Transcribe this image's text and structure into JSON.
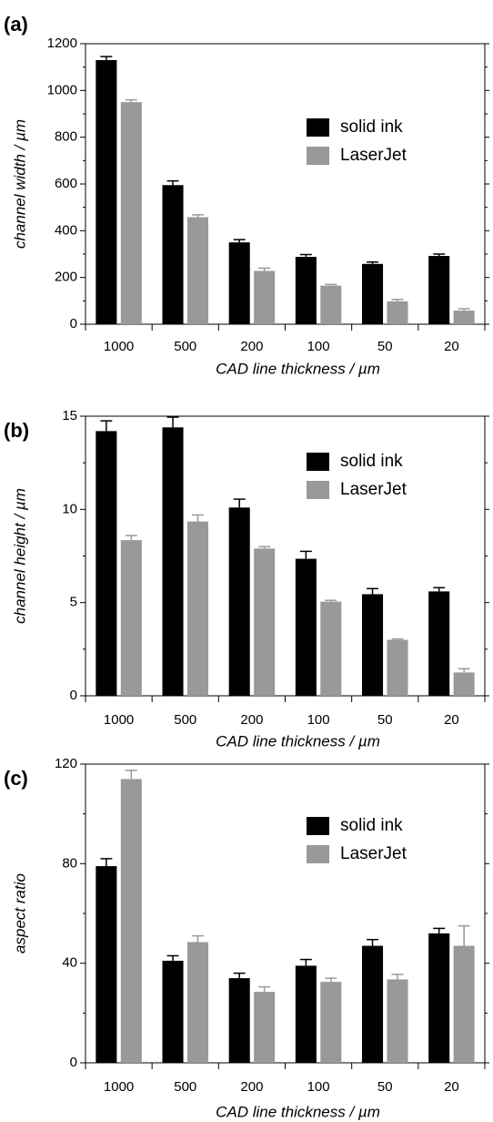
{
  "figure": {
    "categories": [
      "1000",
      "500",
      "200",
      "100",
      "50",
      "20"
    ],
    "series_colors": {
      "solid ink": "#000000",
      "LaserJet": "#999999"
    }
  },
  "chart_data": [
    {
      "type": "bar",
      "panel_label": "(a)",
      "xlabel": "CAD line thickness  /  µm",
      "ylabel": "channel  width  /  µm",
      "categories": [
        "1000",
        "500",
        "200",
        "100",
        "50",
        "20"
      ],
      "ylim": [
        0,
        1200
      ],
      "yticks": [
        0,
        200,
        400,
        600,
        800,
        1000,
        1200
      ],
      "legend_position": "upper-right",
      "series": [
        {
          "name": "solid ink",
          "color": "#000000",
          "values": [
            1130,
            595,
            350,
            288,
            258,
            292
          ],
          "errors": [
            15,
            18,
            12,
            10,
            8,
            8
          ]
        },
        {
          "name": "LaserJet",
          "color": "#999999",
          "values": [
            950,
            458,
            228,
            165,
            98,
            58
          ],
          "errors": [
            10,
            10,
            12,
            5,
            8,
            8
          ]
        }
      ]
    },
    {
      "type": "bar",
      "panel_label": "(b)",
      "xlabel": "CAD line thickness  /  µm",
      "ylabel": "channel  height  /  µm",
      "categories": [
        "1000",
        "500",
        "200",
        "100",
        "50",
        "20"
      ],
      "ylim": [
        0,
        15
      ],
      "yticks": [
        0,
        5,
        10,
        15
      ],
      "legend_position": "upper-right",
      "series": [
        {
          "name": "solid ink",
          "color": "#000000",
          "values": [
            14.2,
            14.4,
            10.1,
            7.35,
            5.45,
            5.6
          ],
          "errors": [
            0.55,
            0.55,
            0.45,
            0.4,
            0.3,
            0.2
          ]
        },
        {
          "name": "LaserJet",
          "color": "#999999",
          "values": [
            8.35,
            9.35,
            7.9,
            5.05,
            3.0,
            1.25
          ],
          "errors": [
            0.25,
            0.35,
            0.1,
            0.07,
            0.05,
            0.2
          ]
        }
      ]
    },
    {
      "type": "bar",
      "panel_label": "(c)",
      "xlabel": "CAD line thickness  /  µm",
      "ylabel": "aspect  ratio",
      "categories": [
        "1000",
        "500",
        "200",
        "100",
        "50",
        "20"
      ],
      "ylim": [
        0,
        120
      ],
      "yticks": [
        0,
        40,
        80,
        120
      ],
      "legend_position": "upper-right",
      "series": [
        {
          "name": "solid ink",
          "color": "#000000",
          "values": [
            79,
            41,
            34,
            39,
            47,
            52
          ],
          "errors": [
            3,
            2,
            2,
            2.5,
            2.5,
            2
          ]
        },
        {
          "name": "LaserJet",
          "color": "#999999",
          "values": [
            114,
            48.5,
            28.5,
            32.5,
            33.5,
            47
          ],
          "errors": [
            3.5,
            2.5,
            2,
            1.5,
            2,
            8
          ]
        }
      ]
    }
  ]
}
